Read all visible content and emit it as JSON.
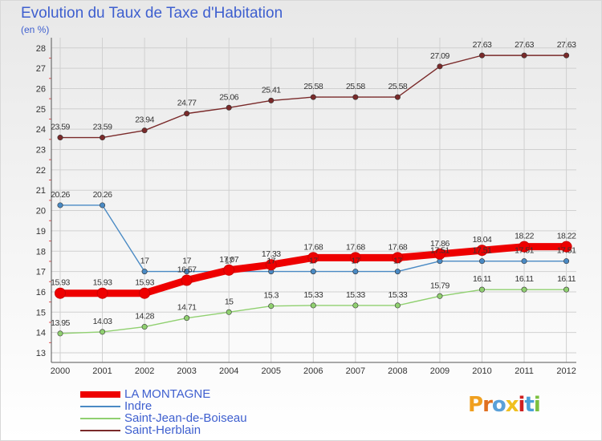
{
  "title": "Evolution du Taux de Taxe d'Habitation",
  "unit": "(en %)",
  "logo": {
    "text": "Proxiti",
    "colors": [
      "#f0a020",
      "#e07020",
      "#5aa0d8",
      "#f0c020",
      "#d02020",
      "#4aa0d8",
      "#7cc040"
    ]
  },
  "chart_data": {
    "type": "line",
    "title": "Evolution du Taux de Taxe d'Habitation",
    "ylabel": "(en %)",
    "xlabel": "",
    "x": [
      "2000",
      "2001",
      "2002",
      "2003",
      "2004",
      "2005",
      "2006",
      "2007",
      "2008",
      "2009",
      "2010",
      "2011",
      "2012"
    ],
    "ylim": [
      13,
      28
    ],
    "yticks": [
      "13",
      "14",
      "15",
      "16",
      "17",
      "18",
      "19",
      "20",
      "21",
      "22",
      "23",
      "24",
      "25",
      "26",
      "27",
      "28"
    ],
    "grid": true,
    "legend_position": "bottom-left",
    "series": [
      {
        "name": "Saint-Herblain",
        "color": "#7a2a2a",
        "values": [
          23.59,
          23.59,
          23.94,
          24.77,
          25.06,
          25.41,
          25.58,
          25.58,
          25.58,
          27.09,
          27.63,
          27.63,
          27.63
        ],
        "labels": [
          "23.59",
          "23.59",
          "23.94",
          "24.77",
          "25.06",
          "25.41",
          "25.58",
          "25.58",
          "25.58",
          "27.09",
          "27.63",
          "27.63",
          "27.63"
        ]
      },
      {
        "name": "Indre",
        "color": "#4a8ac4",
        "values": [
          20.26,
          20.26,
          17,
          17,
          17,
          17,
          17,
          17,
          17,
          17.51,
          17.51,
          17.51,
          17.51
        ],
        "labels": [
          "20.26",
          "20.26",
          "17",
          "17",
          "17",
          "17",
          "17",
          "17",
          "17",
          "17.51",
          "17.51",
          "17.51",
          "17.51"
        ]
      },
      {
        "name": "Saint-Jean-de-Boiseau",
        "color": "#90d070",
        "values": [
          13.95,
          14.03,
          14.28,
          14.71,
          15,
          15.3,
          15.33,
          15.33,
          15.33,
          15.79,
          16.11,
          16.11,
          16.11
        ],
        "labels": [
          "13.95",
          "14.03",
          "14.28",
          "14.71",
          "15",
          "15.3",
          "15.33",
          "15.33",
          "15.33",
          "15.79",
          "16.11",
          "16.11",
          "16.11"
        ]
      },
      {
        "name": "LA MONTAGNE",
        "color": "#ee0000",
        "values": [
          15.93,
          15.93,
          15.93,
          16.57,
          17.07,
          17.33,
          17.68,
          17.68,
          17.68,
          17.86,
          18.04,
          18.22,
          18.22
        ],
        "labels": [
          "15.93",
          "15.93",
          "15.93",
          "16.57",
          "17.07",
          "17.33",
          "17.68",
          "17.68",
          "17.68",
          "17.86",
          "18.04",
          "18.22",
          "18.22"
        ]
      }
    ],
    "legend_order": [
      "LA MONTAGNE",
      "Indre",
      "Saint-Jean-de-Boiseau",
      "Saint-Herblain"
    ]
  }
}
